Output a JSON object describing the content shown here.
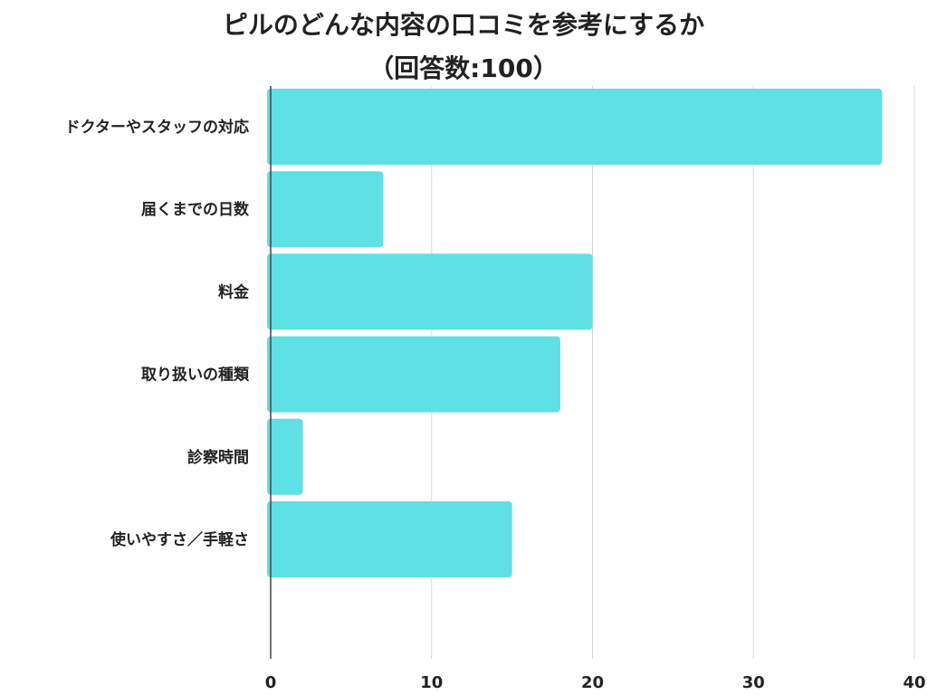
{
  "chart_data": {
    "type": "bar",
    "orientation": "horizontal",
    "title": "ピルのどんな内容の口コミを参考にするか",
    "subtitle": "（回答数:100）",
    "categories": [
      "ドクターやスタッフの対応",
      "届くまでの日数",
      "料金",
      "取り扱いの種類",
      "診察時間",
      "使いやすさ／手軽さ"
    ],
    "values": [
      38,
      7,
      20,
      18,
      2,
      15
    ],
    "xlim": [
      0,
      40
    ],
    "xticks": [
      "0",
      "10",
      "20",
      "30",
      "40"
    ],
    "grid": true,
    "bar_color": "#5ee0e4"
  }
}
